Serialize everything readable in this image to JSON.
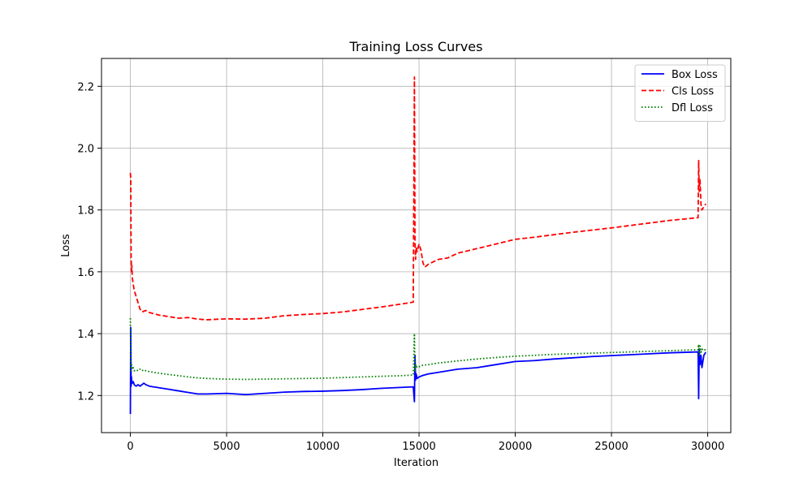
{
  "chart_data": {
    "type": "line",
    "title": "Training Loss Curves",
    "xlabel": "Iteration",
    "ylabel": "Loss",
    "xlim": [
      -1500,
      31200
    ],
    "ylim": [
      1.08,
      2.29
    ],
    "xticks": [
      0,
      5000,
      10000,
      15000,
      20000,
      25000,
      30000
    ],
    "yticks": [
      1.2,
      1.4,
      1.6,
      1.8,
      2.0,
      2.2
    ],
    "grid": true,
    "legend_position": "top-right",
    "series": [
      {
        "name": "Box Loss",
        "color": "#0000ff",
        "dash": "solid",
        "x": [
          0,
          20,
          40,
          60,
          80,
          100,
          150,
          200,
          300,
          400,
          500,
          600,
          700,
          800,
          1000,
          1500,
          2000,
          2500,
          3000,
          3500,
          4000,
          5000,
          6000,
          7000,
          8000,
          9000,
          10000,
          11000,
          12000,
          13000,
          14000,
          14700,
          14760,
          14790,
          14820,
          14850,
          14900,
          15000,
          15200,
          15500,
          16000,
          17000,
          18000,
          19000,
          20000,
          21000,
          22000,
          23000,
          24000,
          25000,
          26000,
          27000,
          28000,
          29000,
          29500,
          29530,
          29560,
          29600,
          29650,
          29700,
          29800,
          29900
        ],
        "values": [
          1.14,
          1.42,
          1.23,
          1.26,
          1.24,
          1.24,
          1.245,
          1.235,
          1.23,
          1.235,
          1.23,
          1.235,
          1.24,
          1.235,
          1.23,
          1.225,
          1.22,
          1.215,
          1.21,
          1.205,
          1.205,
          1.207,
          1.203,
          1.207,
          1.211,
          1.213,
          1.214,
          1.216,
          1.219,
          1.223,
          1.226,
          1.228,
          1.18,
          1.33,
          1.25,
          1.27,
          1.255,
          1.26,
          1.265,
          1.27,
          1.275,
          1.285,
          1.29,
          1.3,
          1.31,
          1.313,
          1.318,
          1.322,
          1.326,
          1.329,
          1.332,
          1.335,
          1.338,
          1.34,
          1.341,
          1.19,
          1.35,
          1.3,
          1.33,
          1.29,
          1.33,
          1.34
        ]
      },
      {
        "name": "Cls Loss",
        "color": "#ff0000",
        "dash": "dashed",
        "x": [
          0,
          20,
          40,
          60,
          80,
          100,
          150,
          200,
          300,
          400,
          500,
          600,
          800,
          1000,
          1500,
          2000,
          2500,
          3000,
          3500,
          4000,
          5000,
          6000,
          7000,
          8000,
          9000,
          10000,
          11000,
          12000,
          13000,
          14000,
          14700,
          14760,
          14790,
          14820,
          14850,
          14900,
          15000,
          15100,
          15200,
          15300,
          15500,
          16000,
          16500,
          17000,
          18000,
          19000,
          20000,
          21000,
          22000,
          23000,
          24000,
          25000,
          26000,
          27000,
          28000,
          29000,
          29500,
          29530,
          29560,
          29600,
          29650,
          29700,
          29800,
          29900
        ],
        "values": [
          1.92,
          1.9,
          1.65,
          1.6,
          1.62,
          1.58,
          1.56,
          1.54,
          1.52,
          1.5,
          1.48,
          1.47,
          1.475,
          1.468,
          1.46,
          1.455,
          1.45,
          1.452,
          1.447,
          1.445,
          1.448,
          1.447,
          1.45,
          1.458,
          1.462,
          1.465,
          1.47,
          1.478,
          1.486,
          1.495,
          1.502,
          2.23,
          1.7,
          1.64,
          1.68,
          1.665,
          1.69,
          1.67,
          1.63,
          1.615,
          1.625,
          1.64,
          1.645,
          1.66,
          1.675,
          1.69,
          1.705,
          1.712,
          1.72,
          1.728,
          1.735,
          1.742,
          1.75,
          1.758,
          1.766,
          1.772,
          1.775,
          1.96,
          1.86,
          1.9,
          1.82,
          1.8,
          1.81,
          1.82
        ]
      },
      {
        "name": "Dfl Loss",
        "color": "#008000",
        "dash": "dotted",
        "x": [
          0,
          20,
          40,
          60,
          80,
          100,
          150,
          200,
          300,
          400,
          500,
          600,
          700,
          800,
          1000,
          1500,
          2000,
          2500,
          3000,
          3500,
          4000,
          5000,
          6000,
          7000,
          8000,
          9000,
          10000,
          11000,
          12000,
          13000,
          14000,
          14700,
          14760,
          14790,
          14820,
          14850,
          14900,
          15000,
          15200,
          15500,
          16000,
          17000,
          18000,
          19000,
          20000,
          21000,
          22000,
          23000,
          24000,
          25000,
          26000,
          27000,
          28000,
          29000,
          29500,
          29530,
          29560,
          29600,
          29650,
          29700,
          29800,
          29900
        ],
        "values": [
          1.45,
          1.31,
          1.28,
          1.3,
          1.29,
          1.285,
          1.29,
          1.28,
          1.283,
          1.28,
          1.285,
          1.28,
          1.283,
          1.28,
          1.277,
          1.272,
          1.268,
          1.264,
          1.26,
          1.257,
          1.255,
          1.253,
          1.252,
          1.253,
          1.254,
          1.255,
          1.256,
          1.258,
          1.26,
          1.262,
          1.264,
          1.266,
          1.4,
          1.28,
          1.3,
          1.29,
          1.295,
          1.293,
          1.298,
          1.3,
          1.305,
          1.312,
          1.318,
          1.323,
          1.327,
          1.33,
          1.333,
          1.335,
          1.337,
          1.339,
          1.341,
          1.343,
          1.345,
          1.347,
          1.348,
          1.365,
          1.33,
          1.36,
          1.34,
          1.35,
          1.345,
          1.35
        ]
      }
    ]
  }
}
